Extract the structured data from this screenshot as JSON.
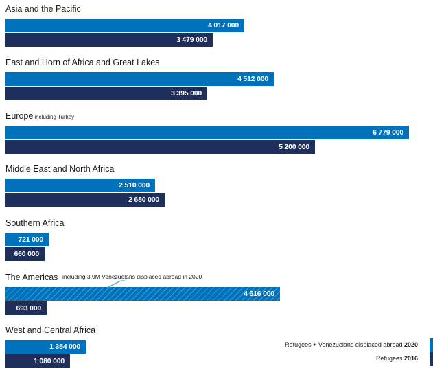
{
  "colors": {
    "year2020": "#0072bc",
    "year2016": "#1e2f5c",
    "note_line": "#2aa7a0"
  },
  "chart_data": {
    "type": "bar",
    "orientation": "horizontal",
    "categories": [
      "Asia and the Pacific",
      "East and Horn of Africa and Great Lakes",
      "Europe",
      "Middle East and North Africa",
      "Southern Africa",
      "The Americas",
      "West and Central Africa"
    ],
    "category_notes": [
      "",
      "",
      "including Turkey",
      "",
      "",
      "",
      ""
    ],
    "americas_note": "including 3.9M Venezuelans displaced abroad in 2020",
    "series": [
      {
        "name": "Refugees + Venezuelans displaced abroad 2020",
        "legend_text": "Refugees + Venezuelans displaced abroad",
        "legend_year": "2020",
        "values": [
          4017000,
          4512000,
          6779000,
          2510000,
          721000,
          4616000,
          1354000
        ],
        "labels": [
          "4 017 000",
          "4 512 000",
          "6 779 000",
          "2 510 000",
          "721 000",
          "4 616 000",
          "1 354 000"
        ]
      },
      {
        "name": "Refugees 2016",
        "legend_text": "Refugees",
        "legend_year": "2016",
        "values": [
          3479000,
          3395000,
          5200000,
          2680000,
          660000,
          693000,
          1080000
        ],
        "labels": [
          "3 479 000",
          "3 395 000",
          "5 200 000",
          "2 680 000",
          "660 000",
          "693 000",
          "1 080 000"
        ]
      }
    ],
    "xlim": [
      0,
      7000000
    ],
    "grid": false,
    "legend_position": "bottom-right"
  }
}
